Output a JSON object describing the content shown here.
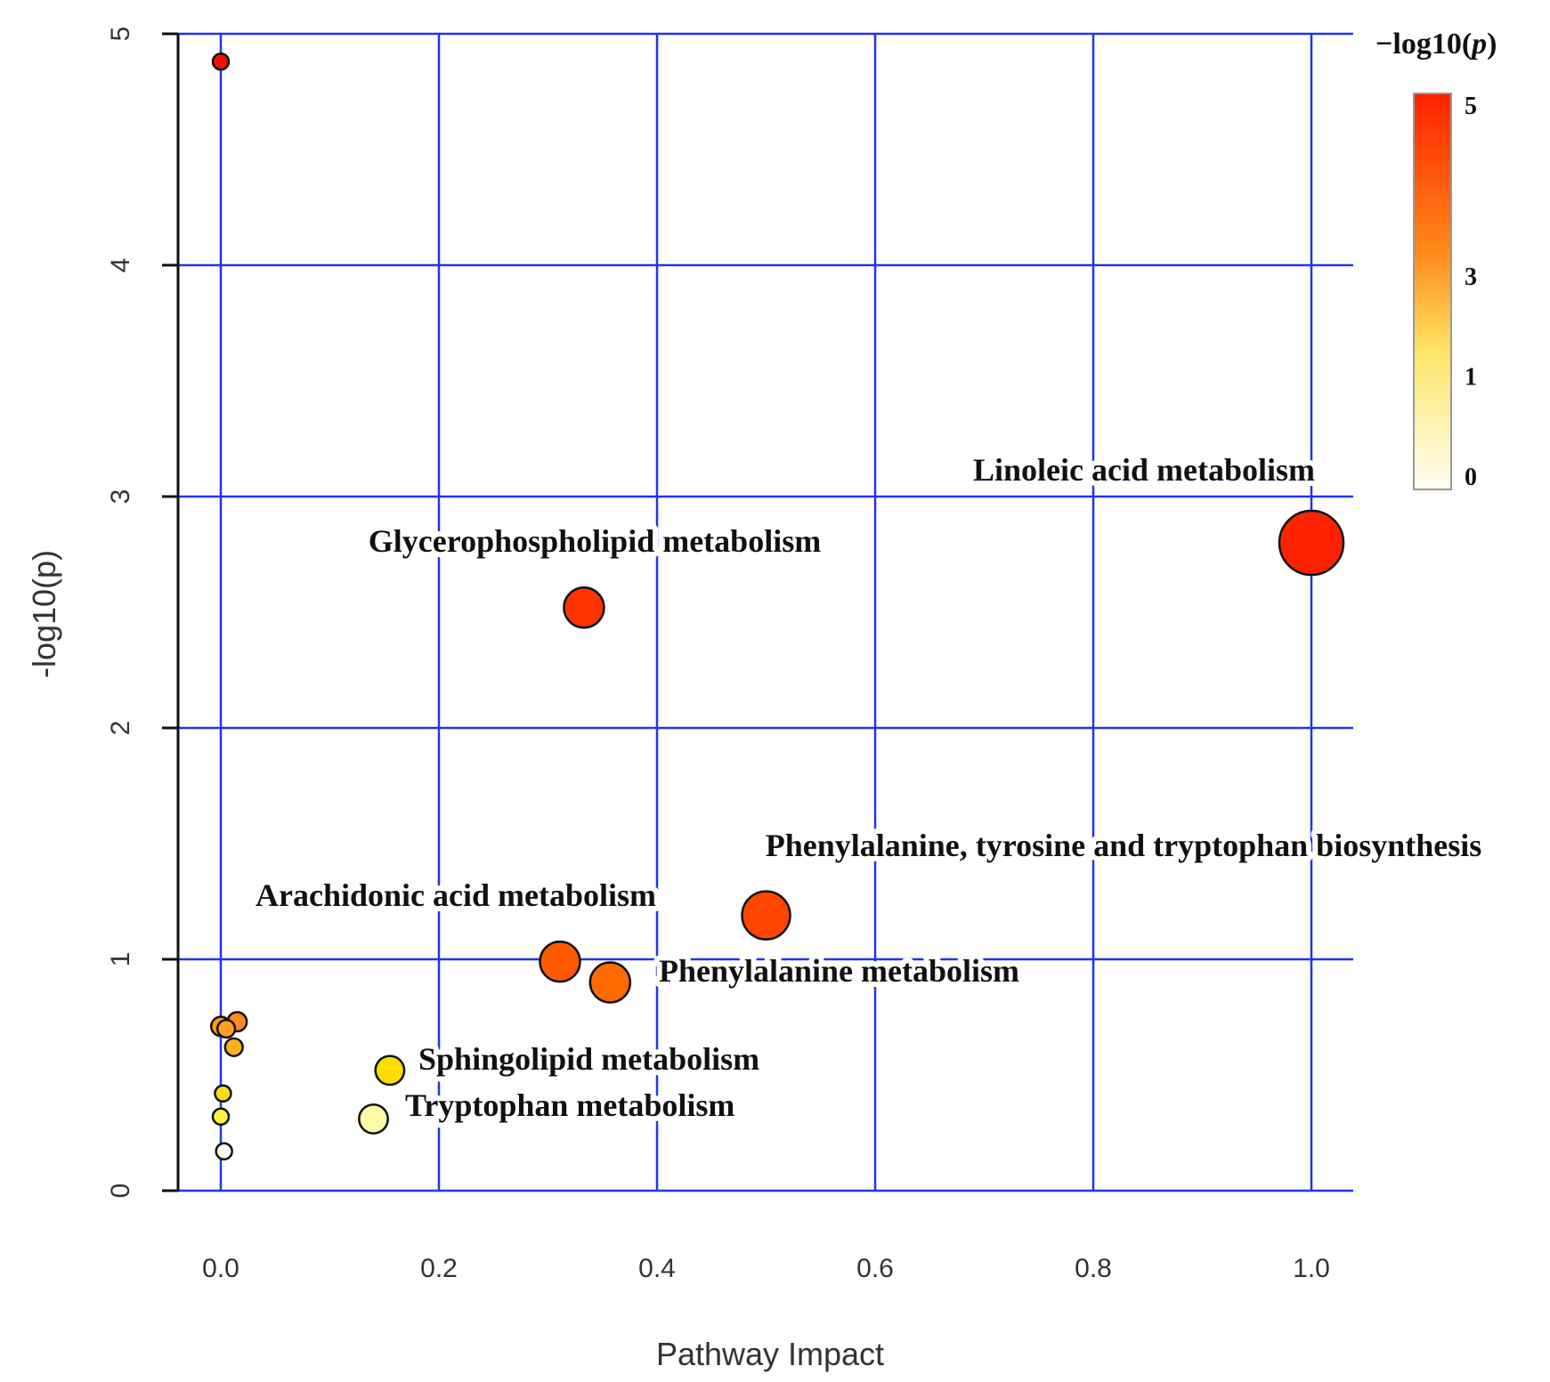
{
  "chart_data": {
    "type": "scatter",
    "title": "",
    "xlabel": "Pathway Impact",
    "ylabel": "-log10(p)",
    "xlim": [
      -0.04,
      1.04
    ],
    "ylim": [
      0,
      5
    ],
    "xticks": [
      0.0,
      0.2,
      0.4,
      0.6,
      0.8,
      1.0
    ],
    "xtick_labels": [
      "0.0",
      "0.2",
      "0.4",
      "0.6",
      "0.8",
      "1.0"
    ],
    "yticks": [
      0,
      1,
      2,
      3,
      4,
      5
    ],
    "ytick_labels": [
      "0",
      "1",
      "2",
      "3",
      "4",
      "5"
    ],
    "grid": true,
    "legend": {
      "title": "−log10(",
      "title_italic": "p",
      "title_close": ")",
      "placement": "top-right",
      "colorbar_ticks": [
        "5",
        "3",
        "1",
        "0"
      ],
      "colorbar_values": [
        5,
        3,
        1,
        0
      ],
      "colors": [
        "#fffdf5",
        "#ffe566",
        "#ff8a1a",
        "#ff2200"
      ]
    },
    "points": [
      {
        "label": "",
        "x": 0.0,
        "y": 4.88,
        "size": 1,
        "color": "#ee1100"
      },
      {
        "label": "Linoleic acid metabolism",
        "x": 1.0,
        "y": 2.8,
        "size": 4,
        "color": "#ff2200"
      },
      {
        "label": "Glycerophospholipid metabolism",
        "x": 0.333,
        "y": 2.52,
        "size": 2.5,
        "color": "#ff3300"
      },
      {
        "label": "Phenylalanine, tyrosine and tryptophan biosynthesis",
        "x": 0.5,
        "y": 1.19,
        "size": 3,
        "color": "#ff4500"
      },
      {
        "label": "Arachidonic acid metabolism",
        "x": 0.311,
        "y": 0.99,
        "size": 2.5,
        "color": "#ff5a00"
      },
      {
        "label": "Phenylalanine metabolism",
        "x": 0.357,
        "y": 0.9,
        "size": 2.5,
        "color": "#ff6a00"
      },
      {
        "label": "",
        "x": 0.015,
        "y": 0.73,
        "size": 1.2,
        "color": "#ff8a1a"
      },
      {
        "label": "",
        "x": 0.0,
        "y": 0.71,
        "size": 1.2,
        "color": "#ff9a1a"
      },
      {
        "label": "",
        "x": 0.005,
        "y": 0.7,
        "size": 1.1,
        "color": "#ffa020"
      },
      {
        "label": "",
        "x": 0.012,
        "y": 0.62,
        "size": 1.1,
        "color": "#ffae22"
      },
      {
        "label": "Sphingolipid metabolism",
        "x": 0.155,
        "y": 0.52,
        "size": 1.8,
        "color": "#ffdd00"
      },
      {
        "label": "",
        "x": 0.002,
        "y": 0.42,
        "size": 1,
        "color": "#ffdd11"
      },
      {
        "label": "",
        "x": 0.0,
        "y": 0.32,
        "size": 1,
        "color": "#ffee44"
      },
      {
        "label": "Tryptophan metabolism",
        "x": 0.14,
        "y": 0.31,
        "size": 1.8,
        "color": "#fffaa8"
      },
      {
        "label": "",
        "x": 0.003,
        "y": 0.17,
        "size": 1,
        "color": "#fffdf0"
      }
    ]
  }
}
